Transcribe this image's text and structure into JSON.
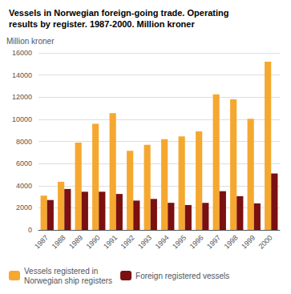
{
  "chart_data": {
    "type": "bar",
    "title": "Vessels in Norwegian foreign-going trade. Operating\nresults by register. 1987-2000. Million kroner",
    "ylabel": "Million kroner",
    "categories": [
      "1987",
      "1988",
      "1989",
      "1990",
      "1991",
      "1992",
      "1993",
      "1994",
      "1995",
      "1996",
      "1997",
      "1998",
      "1999",
      "2000"
    ],
    "series": [
      {
        "name": "Vessels registered in\nNorwegian ship registers",
        "color": "#f5a830",
        "values": [
          3100,
          4350,
          7900,
          9600,
          10550,
          7150,
          7700,
          8200,
          8450,
          8900,
          12250,
          11800,
          10050,
          15200
        ]
      },
      {
        "name": "Foreign registered vessels",
        "color": "#7b1010",
        "values": [
          2700,
          3700,
          3450,
          3450,
          3250,
          2650,
          2800,
          2450,
          2250,
          2450,
          3500,
          3050,
          2400,
          5100
        ]
      }
    ],
    "ylim": [
      0,
      16000
    ],
    "yticks": [
      0,
      2000,
      4000,
      6000,
      8000,
      10000,
      12000,
      14000,
      16000
    ],
    "grid": true,
    "legend": "bottom"
  }
}
